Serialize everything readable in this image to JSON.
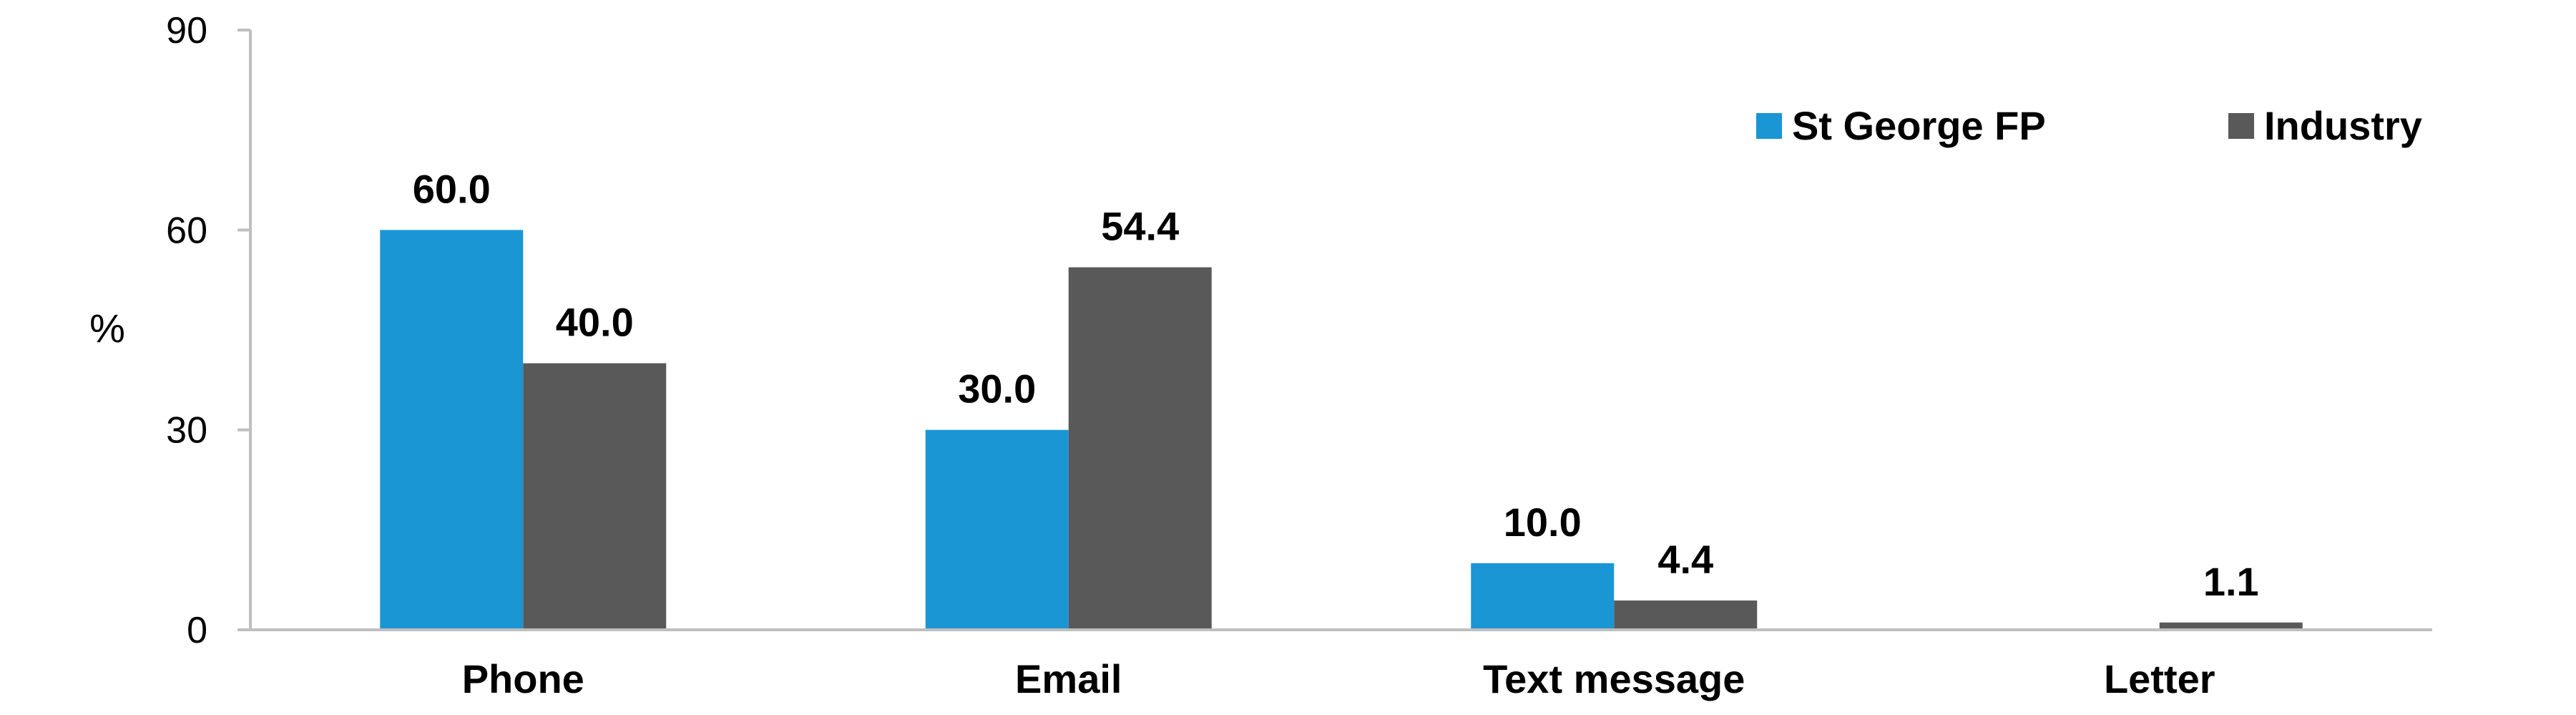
{
  "chart_data": {
    "type": "bar",
    "title": "",
    "xlabel": "",
    "ylabel": "%",
    "ylim": [
      0,
      90
    ],
    "yticks": [
      0,
      30,
      60,
      90
    ],
    "categories": [
      "Phone",
      "Email",
      "Text message",
      "Letter"
    ],
    "series": [
      {
        "name": "St George FP",
        "color": "#1a96d4",
        "values": [
          60.0,
          30.0,
          10.0,
          null
        ],
        "labels": [
          "60.0",
          "30.0",
          "10.0",
          ""
        ]
      },
      {
        "name": "Industry",
        "color": "#595959",
        "values": [
          40.0,
          54.4,
          4.4,
          1.1
        ],
        "labels": [
          "40.0",
          "54.4",
          "4.4",
          "1.1"
        ]
      }
    ],
    "grid": false,
    "legend": "top-right"
  }
}
